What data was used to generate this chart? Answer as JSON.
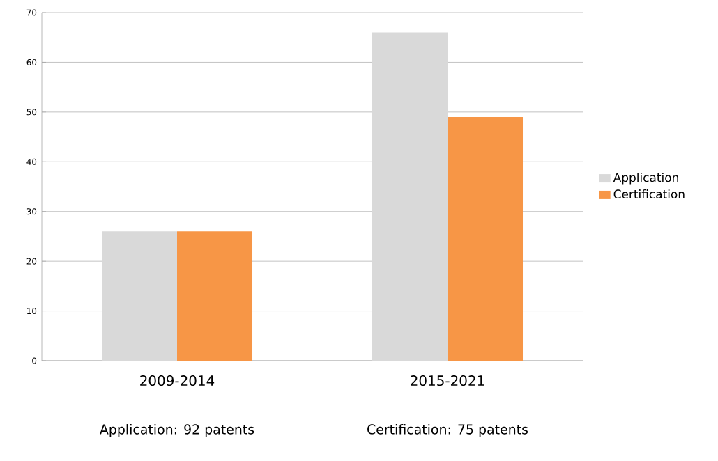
{
  "chart_data": {
    "type": "bar",
    "categories": [
      "2009-2014",
      "2015-2021"
    ],
    "series": [
      {
        "name": "Application",
        "color": "#d9d9d9",
        "values": [
          26,
          66
        ]
      },
      {
        "name": "Certification",
        "color": "#f79646",
        "values": [
          26,
          49
        ]
      }
    ],
    "ylim": [
      0,
      70
    ],
    "yticks": [
      0,
      10,
      20,
      30,
      40,
      50,
      60,
      70
    ],
    "grid": "y",
    "legend": "right",
    "annotations": [
      "Application: 92 patents",
      "Certification: 75 patents"
    ]
  }
}
